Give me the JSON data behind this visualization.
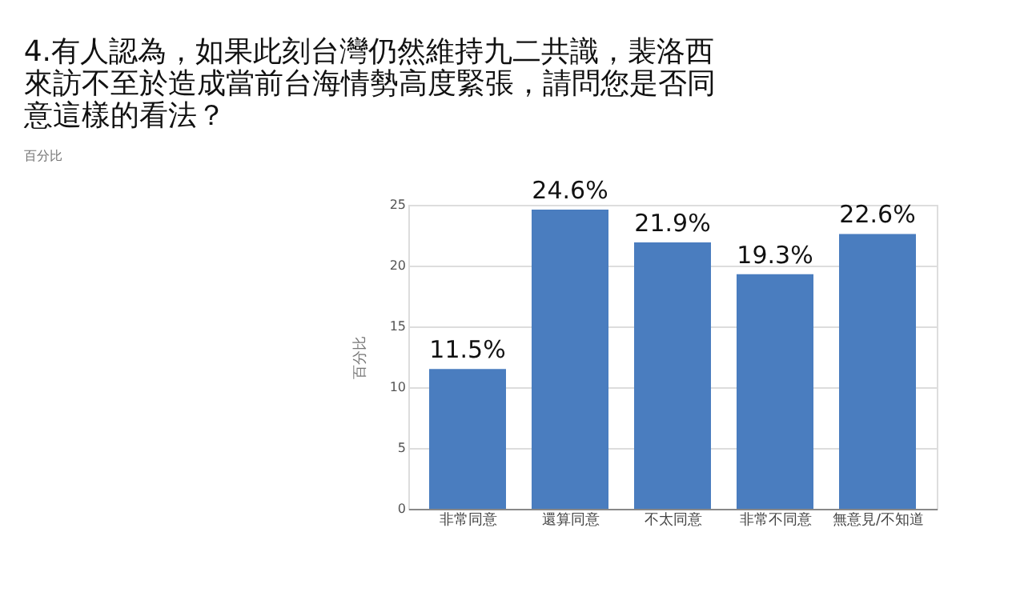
{
  "chart_data": {
    "type": "bar",
    "title": [
      "4.有人認為，如果此刻台灣仍然維持九二共識，裴洛西",
      "來訪不至於造成當前台海情勢高度緊張，請問您是否同",
      "意這樣的看法？"
    ],
    "subtitle": "百分比",
    "ylabel": "百分比",
    "categories": [
      "非常同意",
      "還算同意",
      "不太同意",
      "非常不同意",
      "無意見/不知道"
    ],
    "values": [
      11.5,
      24.6,
      21.9,
      19.3,
      22.6
    ],
    "value_labels": [
      "11.5%",
      "24.6%",
      "21.9%",
      "19.3%",
      "22.6%"
    ],
    "color": "#4a7dbf",
    "ylim": [
      0,
      25
    ],
    "yticks": [
      0,
      5,
      10,
      15,
      20,
      25
    ],
    "grid": "y"
  }
}
